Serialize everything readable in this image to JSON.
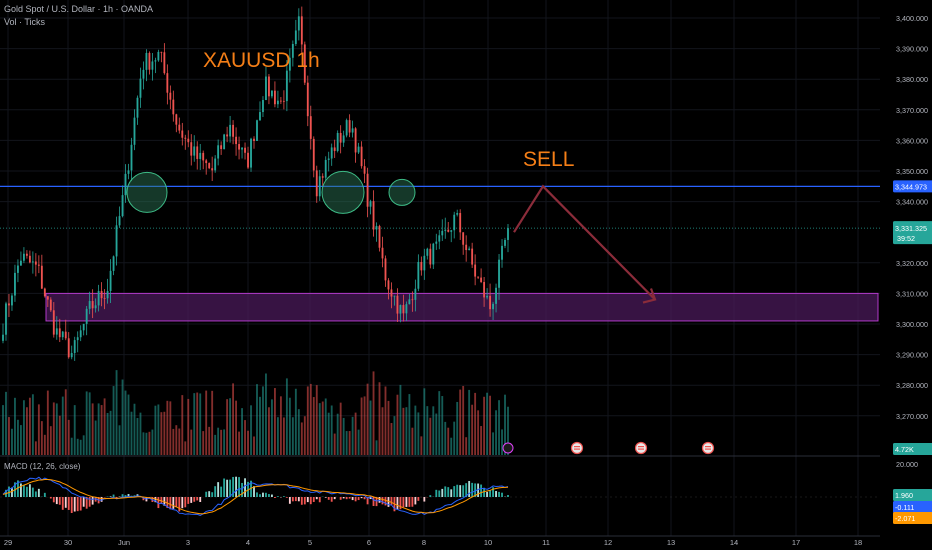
{
  "header": {
    "symbol_line": "Gold Spot / U.S. Dollar · 1h · OANDA",
    "volume_line": "Vol · Ticks"
  },
  "annotations": {
    "title": "XAUUSD  1h",
    "signal": "SELL"
  },
  "price_axis": {
    "ticks": [
      "3,400.000",
      "3,390.000",
      "3,380.000",
      "3,370.000",
      "3,360.000",
      "3,350.000",
      "3,340.000",
      "3,320.000",
      "3,310.000",
      "3,300.000",
      "3,290.000",
      "3,280.000",
      "3,270.000"
    ],
    "resistance_label": "3,344.973",
    "current_price_label": "3,331.325",
    "countdown_label": "39:52",
    "volume_label": "4.72K"
  },
  "time_axis": {
    "ticks": [
      "29",
      "30",
      "Jun",
      "3",
      "4",
      "5",
      "6",
      "8",
      "10",
      "11",
      "12",
      "13",
      "14",
      "17",
      "18"
    ]
  },
  "macd": {
    "label": "MACD (12, 26, close)",
    "axis_top": "20.000",
    "histogram_label": "1.960",
    "macd_label": "-0.111",
    "signal_label": "-2.071"
  },
  "colors": {
    "up": "#26a69a",
    "down": "#ef5350",
    "resistance_line": "#2962ff",
    "support_zone": "#9c27b0",
    "projection_arrow": "#8b2c3a",
    "title_text": "#f57f17",
    "macd_line": "#2962ff",
    "signal_line": "#ff9800"
  },
  "chart_data": {
    "type": "candlestick",
    "symbol": "XAUUSD",
    "timeframe": "1h",
    "ylim": [
      3266,
      3406
    ],
    "resistance": 3344.973,
    "support_zone": [
      3301,
      3310
    ],
    "last_price": 3331.325,
    "highlight_circles_at_price": 3343,
    "projection": [
      {
        "time": "Jun 10",
        "price": 3330
      },
      {
        "time": "Jun 11",
        "price": 3345
      },
      {
        "time": "Jun 12",
        "price": 3308
      }
    ],
    "price_path": [
      {
        "t": "May 29",
        "price": 3300
      },
      {
        "t": "May 29",
        "price": 3322
      },
      {
        "t": "May 30",
        "price": 3318
      },
      {
        "t": "May 30",
        "price": 3298
      },
      {
        "t": "May 30",
        "price": 3290
      },
      {
        "t": "Jun 2",
        "price": 3305
      },
      {
        "t": "Jun 2",
        "price": 3312
      },
      {
        "t": "Jun 2",
        "price": 3345
      },
      {
        "t": "Jun 2",
        "price": 3385
      },
      {
        "t": "Jun 3",
        "price": 3388
      },
      {
        "t": "Jun 3",
        "price": 3365
      },
      {
        "t": "Jun 3",
        "price": 3355
      },
      {
        "t": "Jun 4",
        "price": 3350
      },
      {
        "t": "Jun 4",
        "price": 3365
      },
      {
        "t": "Jun 4",
        "price": 3352
      },
      {
        "t": "Jun 5",
        "price": 3378
      },
      {
        "t": "Jun 5",
        "price": 3372
      },
      {
        "t": "Jun 5",
        "price": 3398
      },
      {
        "t": "Jun 5",
        "price": 3345
      },
      {
        "t": "Jun 6",
        "price": 3358
      },
      {
        "t": "Jun 6",
        "price": 3366
      },
      {
        "t": "Jun 6",
        "price": 3340
      },
      {
        "t": "Jun 8",
        "price": 3315
      },
      {
        "t": "Jun 8",
        "price": 3302
      },
      {
        "t": "Jun 8",
        "price": 3320
      },
      {
        "t": "Jun 9",
        "price": 3325
      },
      {
        "t": "Jun 9",
        "price": 3335
      },
      {
        "t": "Jun 9",
        "price": 3318
      },
      {
        "t": "Jun 10",
        "price": 3305
      },
      {
        "t": "Jun 10",
        "price": 3331
      }
    ]
  }
}
